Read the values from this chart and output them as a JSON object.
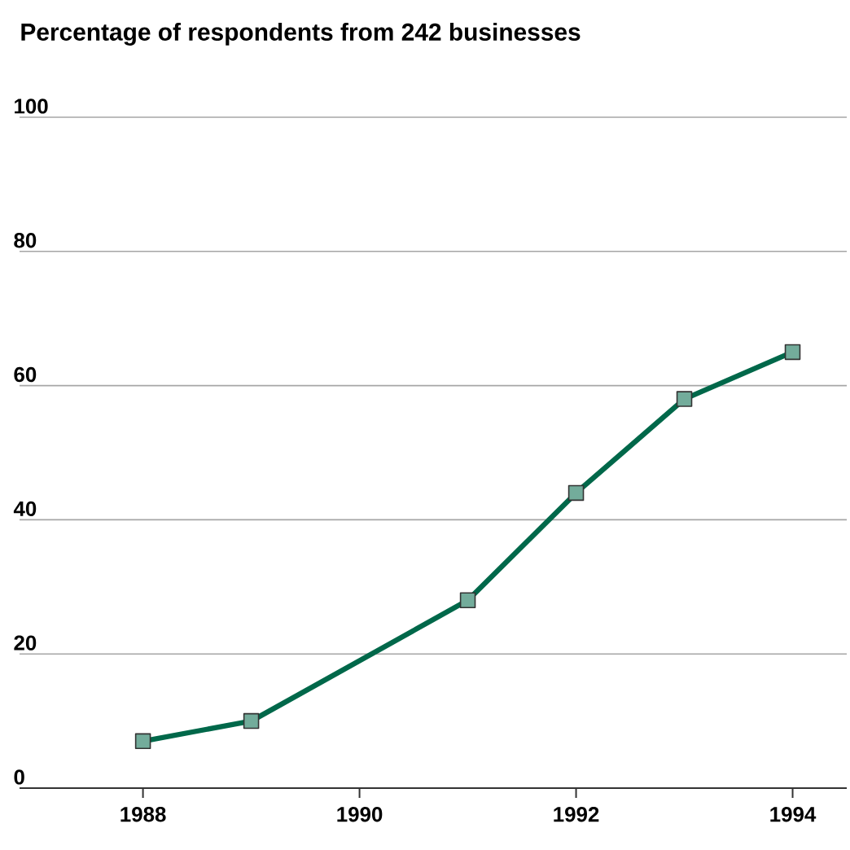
{
  "chart_data": {
    "type": "line",
    "title": "Percentage of respondents from 242 businesses",
    "x": [
      1988,
      1989,
      1991,
      1992,
      1993,
      1994
    ],
    "series": [
      {
        "color": "#00684a",
        "values": [
          7,
          10,
          28,
          44,
          58,
          65
        ]
      }
    ],
    "xlim": [
      1986.86,
      1994.5
    ],
    "xticks": [
      1988,
      1990,
      1992,
      1994
    ],
    "ylim": [
      0,
      100
    ],
    "yticks": [
      0,
      20,
      40,
      60,
      80,
      100
    ],
    "grid": "y",
    "marker": "square",
    "line_style": "solid"
  }
}
